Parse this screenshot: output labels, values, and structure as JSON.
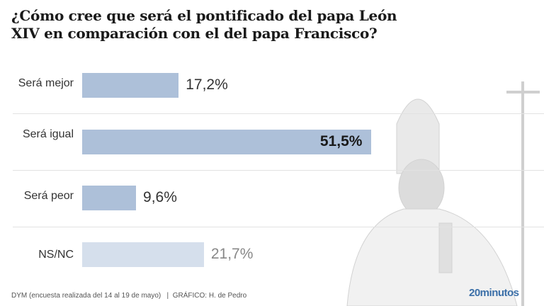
{
  "chart_data": {
    "type": "bar",
    "orientation": "horizontal",
    "title": "¿Cómo cree que será el pontificado del papa León XIV en comparación con el del papa Francisco?",
    "categories": [
      "Será mejor",
      "Será igual",
      "Será peor",
      "NS/NC"
    ],
    "values": [
      17.2,
      51.5,
      9.6,
      21.7
    ],
    "value_labels": [
      "17,2%",
      "51,5%",
      "9,6%",
      "21,7%"
    ],
    "unit": "%",
    "colors": [
      "#adc0d9",
      "#adc0d9",
      "#adc0d9",
      "#d5dfec"
    ],
    "highlight_index": 1,
    "grid": false
  },
  "footer": {
    "source": "DYM (encuesta realizada del 14 al 19 de mayo)   |  GRÁFICO: H. de Pedro",
    "brand": "20minutos"
  }
}
